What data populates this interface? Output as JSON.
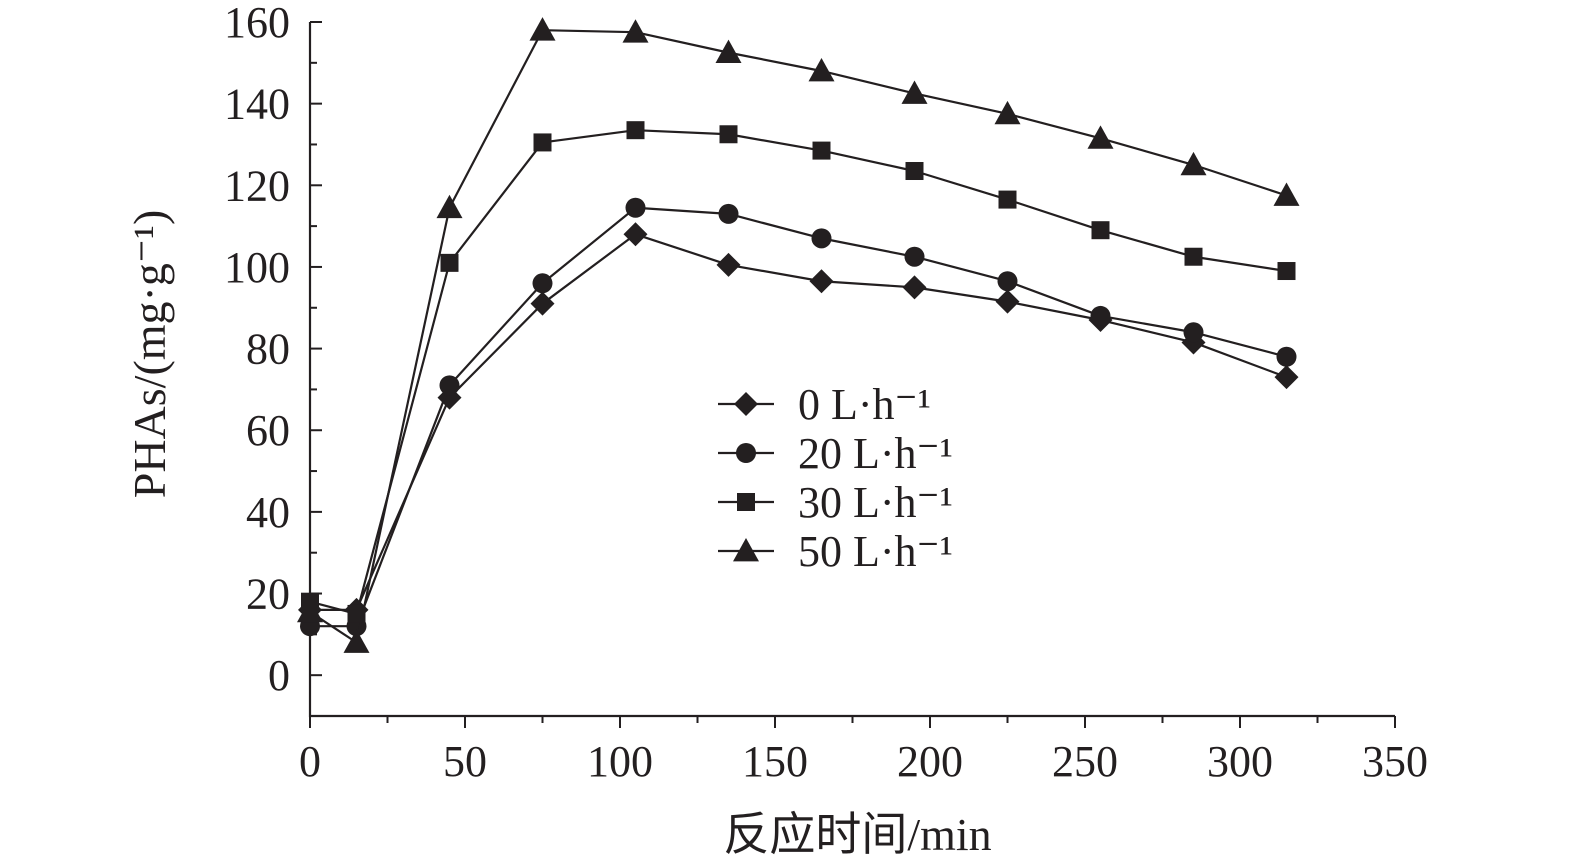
{
  "chart_data": {
    "type": "line",
    "title": "",
    "xlabel": "反应时间/min",
    "ylabel": "PHAs/(mg·g⁻¹)",
    "xlim": [
      0,
      350
    ],
    "ylim": [
      -10,
      160
    ],
    "xticks": [
      0,
      50,
      100,
      150,
      200,
      250,
      300,
      350
    ],
    "yticks": [
      0,
      20,
      40,
      60,
      80,
      100,
      120,
      140,
      160
    ],
    "grid": false,
    "legend_position": "center",
    "x": [
      0,
      15,
      45,
      75,
      105,
      135,
      165,
      195,
      225,
      255,
      285,
      315
    ],
    "series": [
      {
        "name": "0 L·h⁻¹",
        "marker": "diamond",
        "values": [
          16,
          16,
          68,
          91,
          108,
          100.5,
          96.5,
          95,
          91.5,
          87,
          81.5,
          73
        ]
      },
      {
        "name": "20 L·h⁻¹",
        "marker": "circle",
        "values": [
          12,
          12,
          71,
          96,
          114.5,
          113,
          107,
          102.5,
          96.5,
          88,
          84,
          78
        ]
      },
      {
        "name": "30 L·h⁻¹",
        "marker": "square",
        "values": [
          18,
          15,
          101,
          130.5,
          133.5,
          132.5,
          128.5,
          123.5,
          116.5,
          109,
          102.5,
          99
        ]
      },
      {
        "name": "50 L·h⁻¹",
        "marker": "triangle",
        "values": [
          15.5,
          8,
          114.5,
          158,
          157.5,
          152.5,
          148,
          142.5,
          137.5,
          131.5,
          125,
          117.5
        ]
      }
    ]
  }
}
